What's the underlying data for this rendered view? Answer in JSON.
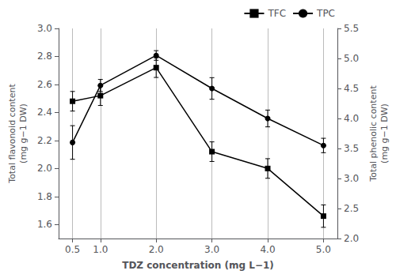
{
  "chart_data": {
    "type": "line",
    "xlabel": "TDZ concentration (mg L−1)",
    "ylabel": "Total flavonoid content\n(mg g−1 DW)",
    "y2label": "Total phenolic content\n(mg g−1 DW)",
    "x": [
      0.5,
      1.0,
      2.0,
      3.0,
      4.0,
      5.0
    ],
    "xlim": [
      0.25,
      5.25
    ],
    "xticks": [
      0.5,
      {
        "value": 1.0,
        "label": "1.0"
      },
      {
        "value": 2.0,
        "label": "2.0"
      },
      {
        "value": 3.0,
        "label": "3.0"
      },
      {
        "value": 4.0,
        "label": "4.0"
      },
      {
        "value": 5.0,
        "label": "5.0"
      }
    ],
    "ylim": [
      1.5,
      3.0
    ],
    "yticks": [
      1.6,
      1.8,
      {
        "value": 2.0,
        "label": "2.0"
      },
      2.2,
      2.4,
      2.6,
      2.8,
      {
        "value": 3.0,
        "label": "3.0"
      }
    ],
    "y2lim": [
      2.0,
      5.5
    ],
    "y2ticks": [
      {
        "value": 2.0,
        "label": "2.0"
      },
      2.5,
      {
        "value": 3.0,
        "label": "3.0"
      },
      3.5,
      {
        "value": 4.0,
        "label": "4.0"
      },
      4.5,
      {
        "value": 5.0,
        "label": "5.0"
      },
      5.5
    ],
    "grid": "x",
    "legend": "upper right",
    "series": [
      {
        "name": "TFC",
        "color": "#000000",
        "marker": "square",
        "values": [
          2.48,
          2.52,
          2.72,
          2.12,
          2.0,
          1.66
        ],
        "yerr": [
          0.07,
          0.07,
          0.07,
          0.07,
          0.07,
          0.08
        ]
      },
      {
        "name": "TPC",
        "axis": "y2",
        "color": "#000000",
        "marker": "circle",
        "values": [
          3.6,
          4.55,
          5.05,
          4.5,
          4.0,
          3.55
        ],
        "yerr": [
          0.28,
          0.1,
          0.08,
          0.18,
          0.14,
          0.12
        ]
      }
    ]
  }
}
